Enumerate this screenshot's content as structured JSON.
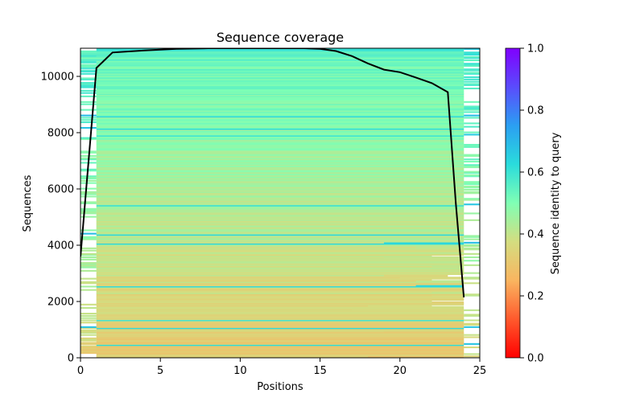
{
  "chart_data": {
    "type": "heatmap",
    "title": "Sequence coverage",
    "xlabel": "Positions",
    "ylabel": "Sequences",
    "xlim": [
      0,
      25
    ],
    "ylim": [
      0,
      11000
    ],
    "xticks": [
      "0",
      "5",
      "10",
      "15",
      "20",
      "25"
    ],
    "yticks": [
      "0",
      "2000",
      "4000",
      "6000",
      "8000",
      "10000"
    ],
    "grid": false,
    "colorbar": {
      "label": "Sequence identity to query",
      "range": [
        0.0,
        1.0
      ],
      "ticks": [
        "0.0",
        "0.2",
        "0.4",
        "0.6",
        "0.8",
        "1.0"
      ],
      "colormap": "rainbow"
    },
    "heatmap_summary": {
      "positions": [
        0,
        24
      ],
      "sequences": [
        0,
        11000
      ],
      "identity_trend": "higher identity (about 0.5–0.6) toward the top rows, lower identity (about 0.3–0.4) toward the bottom rows; columns 0 and 24 sparsely covered"
    },
    "coverage_line": {
      "name": "coverage",
      "color": "#000000",
      "x": [
        0,
        1,
        2,
        4,
        6,
        8,
        10,
        12,
        14,
        15,
        16,
        17,
        18,
        19,
        20,
        21,
        22,
        23,
        23.5,
        24
      ],
      "y": [
        3600,
        10300,
        10850,
        10920,
        10980,
        11000,
        11000,
        11000,
        11000,
        10980,
        10900,
        10720,
        10460,
        10240,
        10150,
        9960,
        9760,
        9440,
        5500,
        2150
      ]
    }
  }
}
